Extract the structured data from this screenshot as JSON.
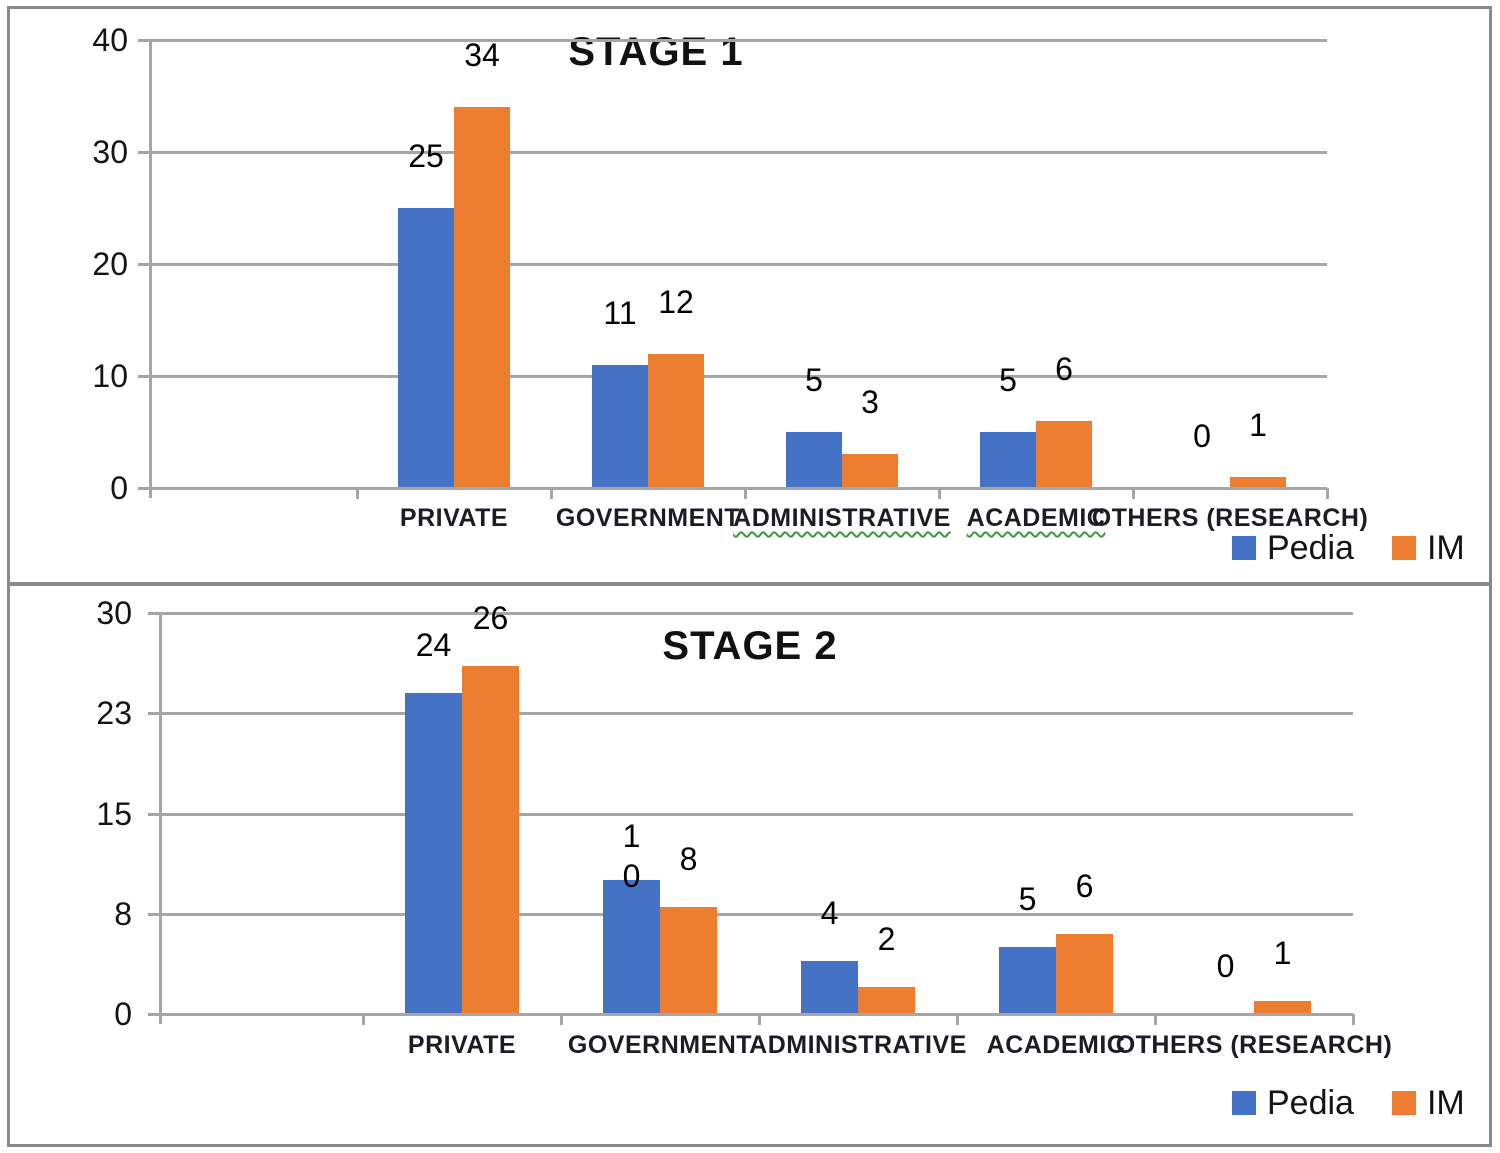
{
  "figure": {
    "description": "Two stacked panels of grouped column charts comparing Pedia and IM counts by practice setting",
    "panels": [
      "STAGE 1",
      "STAGE 2"
    ]
  },
  "colors": {
    "pedia_blue": "#4472C4",
    "im_orange": "#ED7D31",
    "gridline": "#A6A6A6",
    "frame": "#8A8A8A",
    "spellcheck_wavy": "#3A9A3A",
    "text": "#141414"
  },
  "chart_data": [
    {
      "type": "bar",
      "title": "STAGE 1",
      "categories": [
        "PRIVATE",
        "GOVERNMENT",
        "ADMINISTRATIVE",
        "ACADEMIC",
        "OTHERS (RESEARCH)"
      ],
      "series": [
        {
          "name": "Pedia",
          "color": "#4472C4",
          "values": [
            25,
            11,
            5,
            5,
            0
          ],
          "labels": [
            "25",
            "11",
            "5",
            "5",
            "0"
          ]
        },
        {
          "name": "IM",
          "color": "#ED7D31",
          "values": [
            34,
            12,
            3,
            6,
            1
          ],
          "labels": [
            "34",
            "12",
            "3",
            "6",
            "1"
          ]
        }
      ],
      "y_axis": {
        "min": 0,
        "max": 40,
        "ticks": [
          "40",
          "30",
          "20",
          "10",
          "0"
        ]
      },
      "xlabel": "",
      "ylabel": "",
      "grid": true,
      "legend_position": "bottom-right",
      "spellcheck_underlined_categories": [
        "ADMINISTRATIVE",
        "ACADEMIC"
      ]
    },
    {
      "type": "bar",
      "title": "STAGE 2",
      "categories": [
        "PRIVATE",
        "GOVERNMENT",
        "ADMINISTRATIVE",
        "ACADEMIC",
        "OTHERS (RESEARCH)"
      ],
      "series": [
        {
          "name": "Pedia",
          "color": "#4472C4",
          "values": [
            24,
            10,
            4,
            5,
            0
          ],
          "labels": [
            "24",
            "1\n0",
            "4",
            "5",
            "0"
          ]
        },
        {
          "name": "IM",
          "color": "#ED7D31",
          "values": [
            26,
            8,
            2,
            6,
            1
          ],
          "labels": [
            "26",
            "8",
            "2",
            "6",
            "1"
          ]
        }
      ],
      "y_axis": {
        "min": 0,
        "max": 30,
        "ticks": [
          "30",
          "23",
          "15",
          "8",
          "0"
        ]
      },
      "xlabel": "",
      "ylabel": "",
      "grid": true,
      "legend_position": "bottom-right",
      "spellcheck_underlined_categories": []
    }
  ]
}
